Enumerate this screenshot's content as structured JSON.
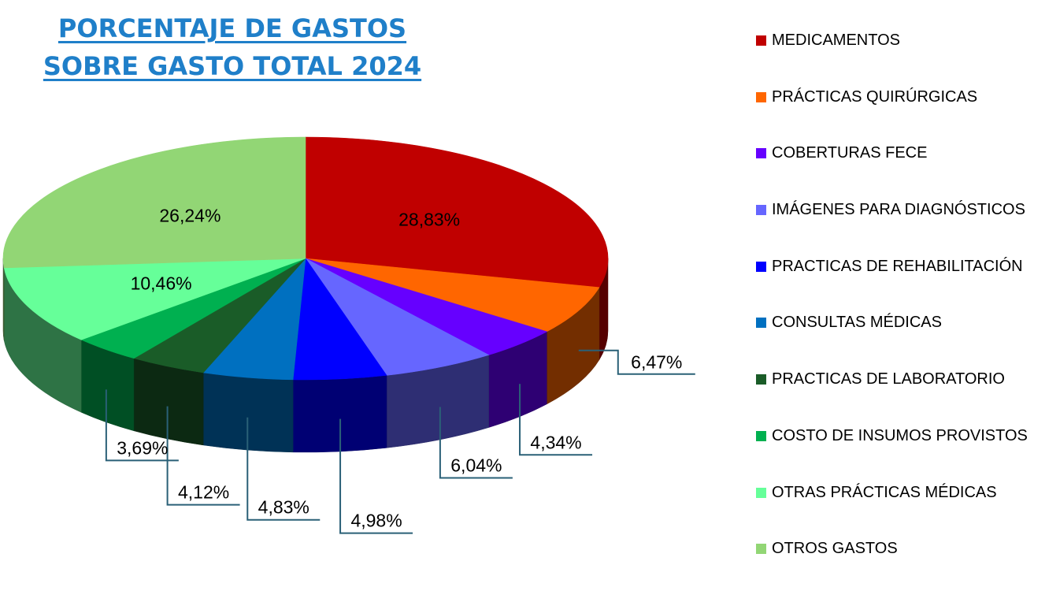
{
  "chart_data": {
    "type": "pie",
    "title_line1": "PORCENTAJE DE GASTOS",
    "title_line2": " SOBRE GASTO TOTAL 2024",
    "title_color": "#1f7fc9",
    "legend_position": "right",
    "slices": [
      {
        "name": "MEDICAMENTOS",
        "value": 28.83,
        "label": "28,83%",
        "color": "#c00000"
      },
      {
        "name": "PRÁCTICAS QUIRÚRGICAS",
        "value": 6.47,
        "label": "6,47%",
        "color": "#ff6600"
      },
      {
        "name": "COBERTURAS FECE",
        "value": 4.34,
        "label": "4,34%",
        "color": "#6600ff"
      },
      {
        "name": "IMÁGENES PARA DIAGNÓSTICOS",
        "value": 6.04,
        "label": "6,04%",
        "color": "#6666ff"
      },
      {
        "name": "PRACTICAS DE REHABILITACIÓN",
        "value": 4.98,
        "label": "4,98%",
        "color": "#0000ff"
      },
      {
        "name": "CONSULTAS MÉDICAS",
        "value": 4.83,
        "label": "4,83%",
        "color": "#0070c0"
      },
      {
        "name": "PRACTICAS DE LABORATORIO",
        "value": 4.12,
        "label": "4,12%",
        "color": "#1a5c28"
      },
      {
        "name": "COSTO DE INSUMOS PROVISTOS",
        "value": 3.69,
        "label": "3,69%",
        "color": "#00b050"
      },
      {
        "name": "OTRAS PRÁCTICAS MÉDICAS",
        "value": 10.46,
        "label": "10,46%",
        "color": "#66ff99"
      },
      {
        "name": "OTROS GASTOS",
        "value": 26.24,
        "label": "26,24%",
        "color": "#92d675"
      }
    ]
  }
}
